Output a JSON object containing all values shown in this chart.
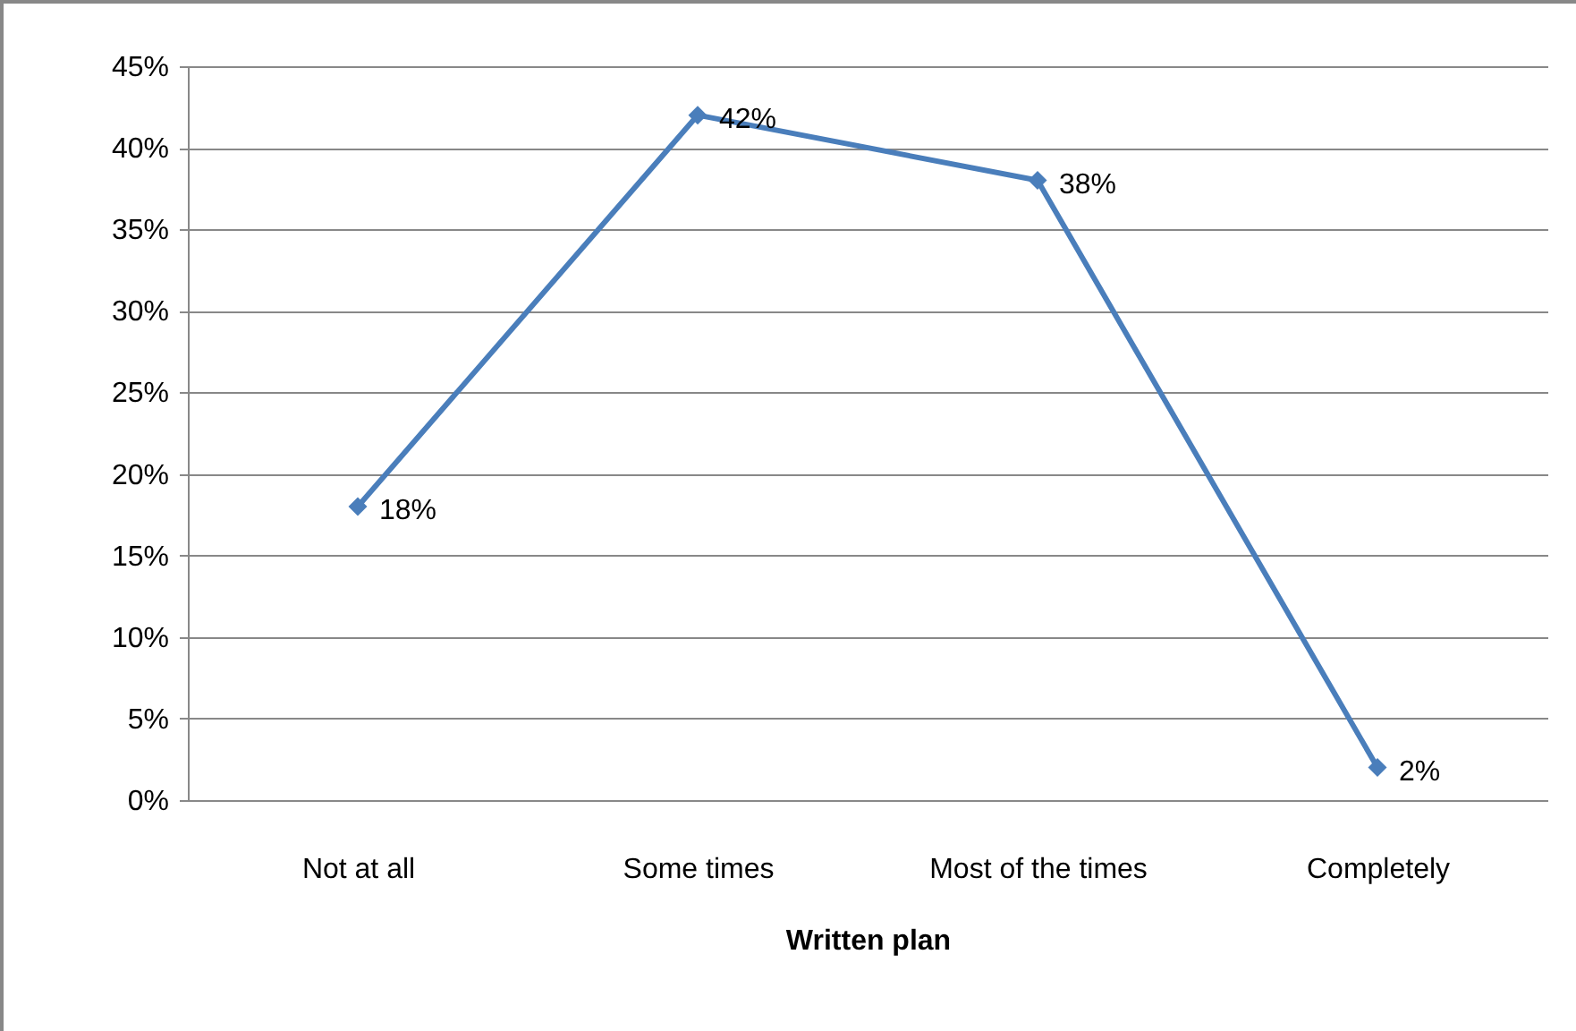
{
  "chart_data": {
    "type": "line",
    "xlabel": "Written plan",
    "categories": [
      "Not at all",
      "Some times",
      "Most of the times",
      "Completely"
    ],
    "series": [
      {
        "color": "#4a7ebb",
        "values": [
          18,
          42,
          38,
          2
        ],
        "value_labels": [
          "18%",
          "42%",
          "38%",
          "2%"
        ]
      }
    ],
    "ylim": [
      0,
      45
    ],
    "yticks": [
      {
        "value": 0,
        "label": "0%"
      },
      {
        "value": 5,
        "label": "5%"
      },
      {
        "value": 10,
        "label": "10%"
      },
      {
        "value": 15,
        "label": "15%"
      },
      {
        "value": 20,
        "label": "20%"
      },
      {
        "value": 25,
        "label": "25%"
      },
      {
        "value": 30,
        "label": "30%"
      },
      {
        "value": 35,
        "label": "35%"
      },
      {
        "value": 40,
        "label": "40%"
      },
      {
        "value": 45,
        "label": "45%"
      }
    ],
    "grid": "y",
    "marker": "diamond",
    "line_style": "solid"
  }
}
